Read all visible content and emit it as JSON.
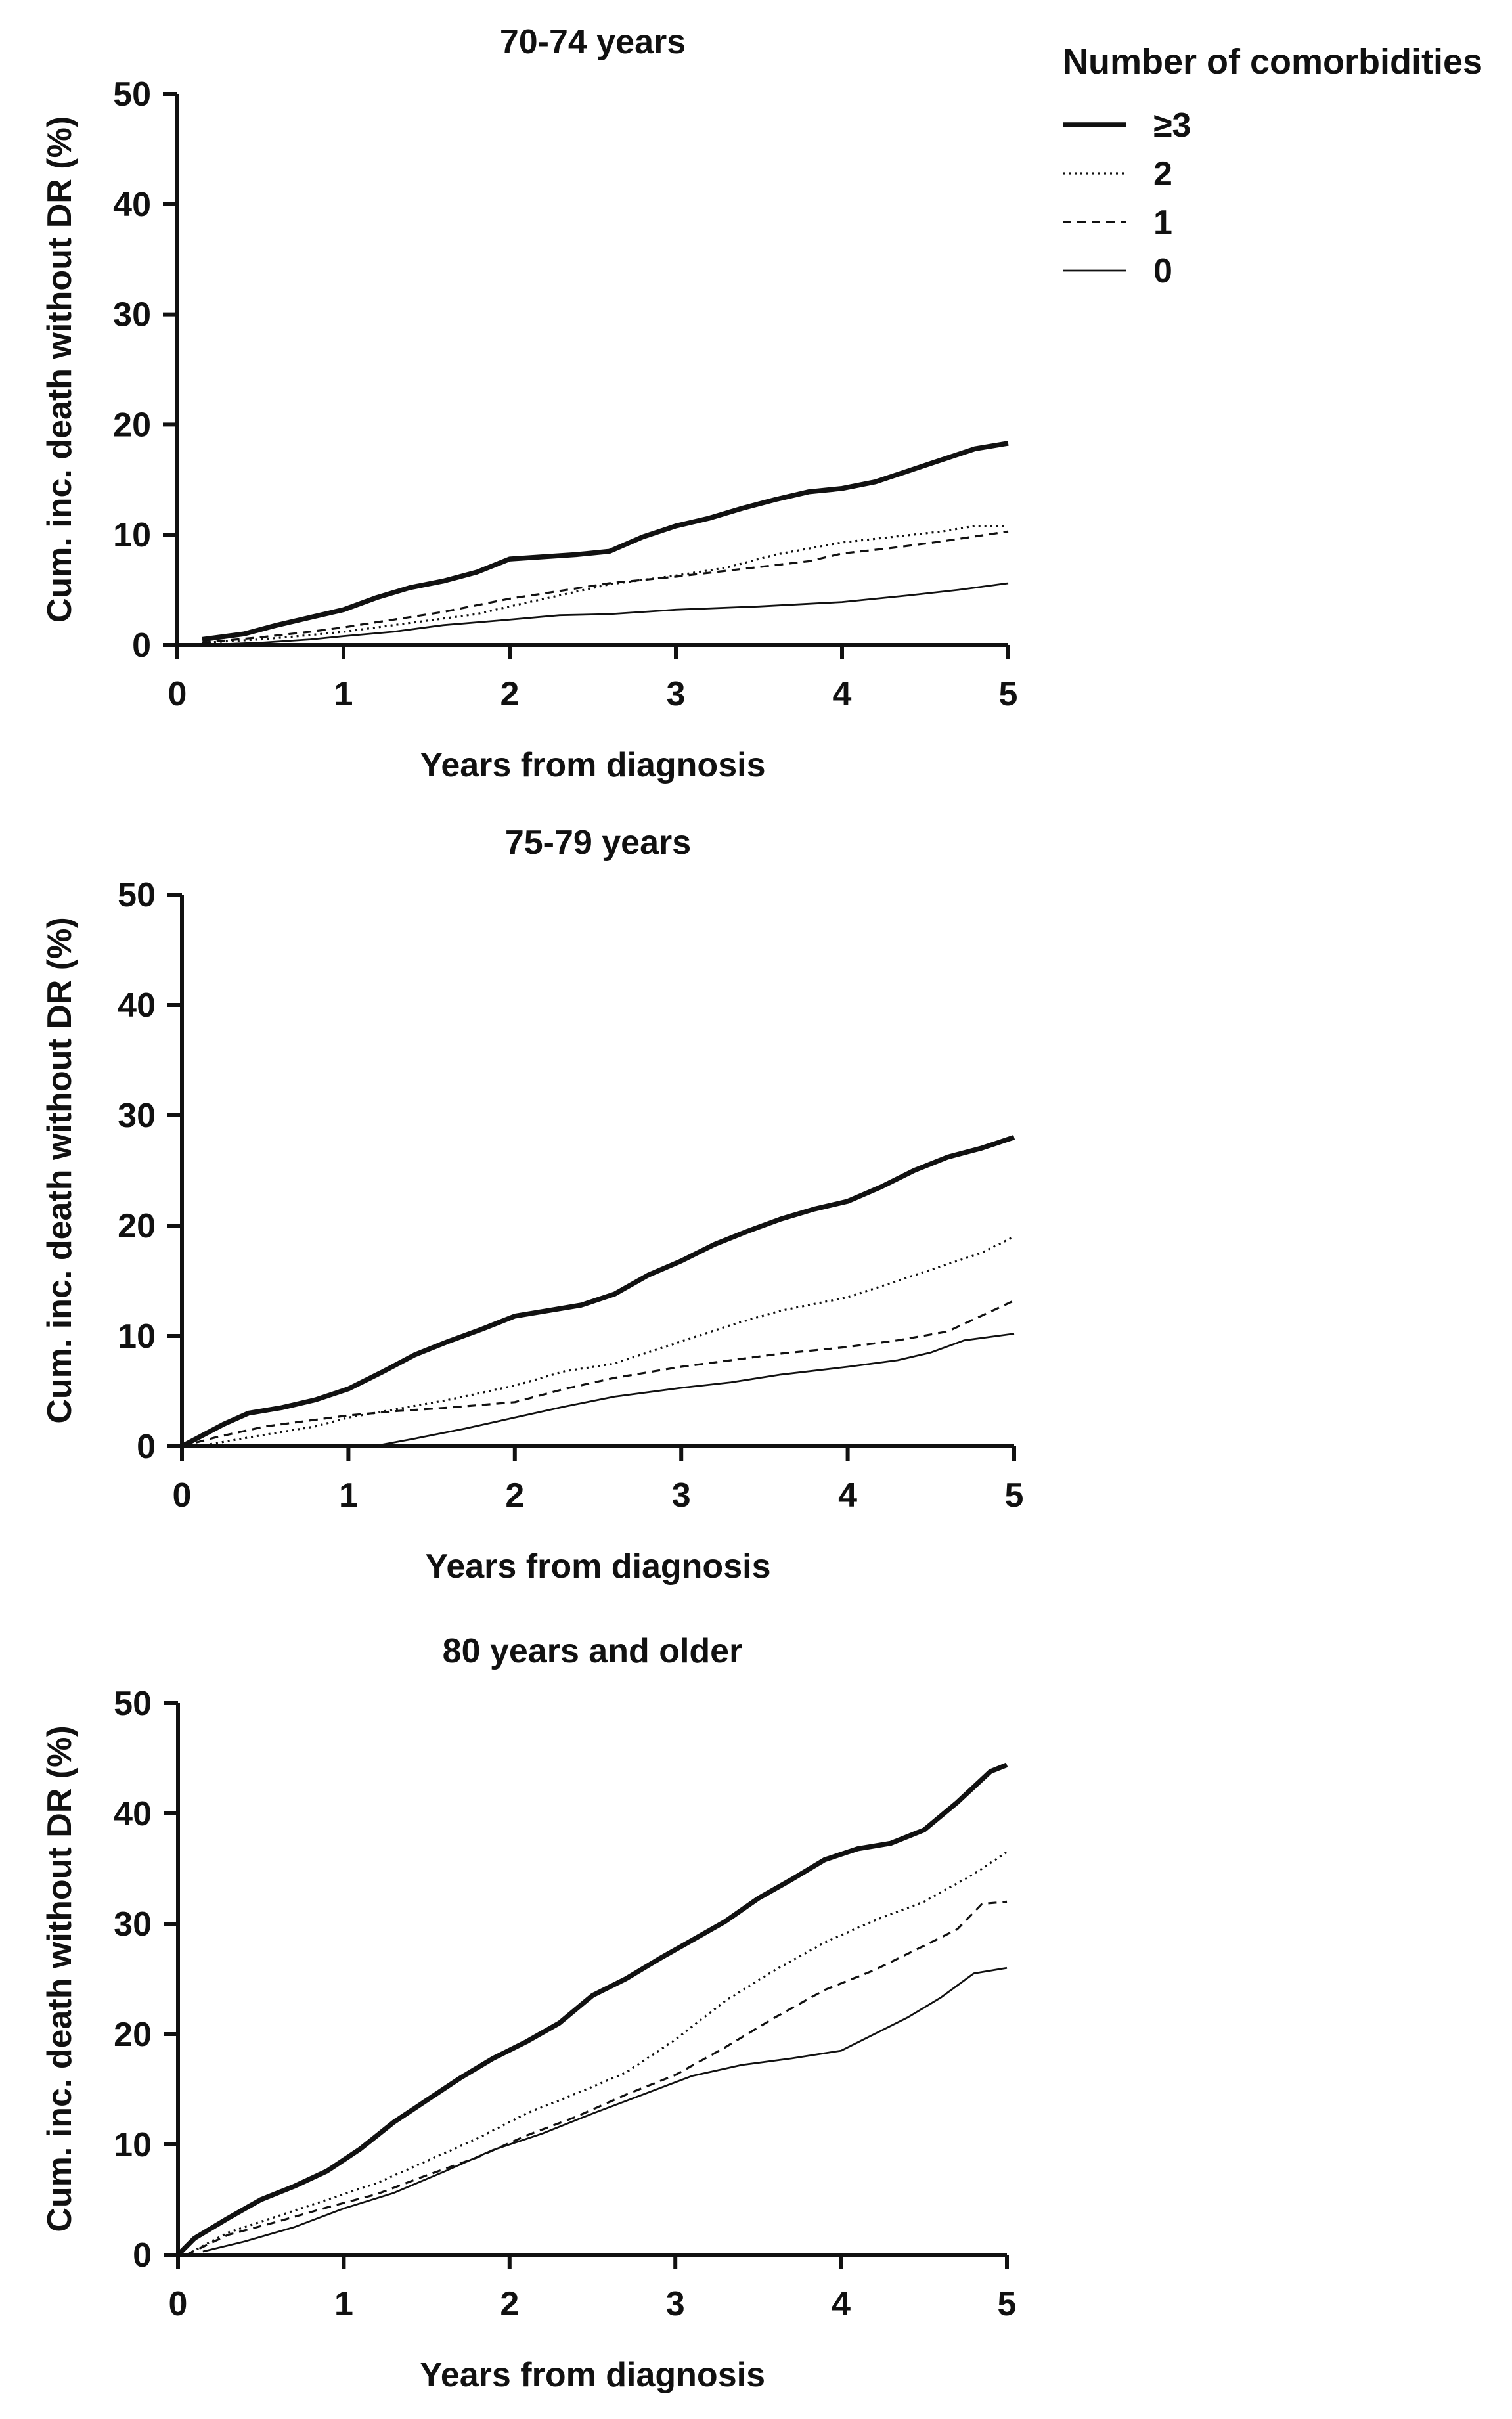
{
  "chart_data": [
    {
      "type": "line",
      "title": "70-74 years",
      "xlabel": "Years from diagnosis",
      "ylabel": "Cum. inc. death without DR (%)",
      "xlim": [
        0,
        5
      ],
      "ylim": [
        0,
        50
      ],
      "xticks": [
        "0",
        "1",
        "2",
        "3",
        "4",
        "5"
      ],
      "yticks": [
        "0",
        "10",
        "20",
        "30",
        "40",
        "50"
      ],
      "grid": false,
      "series": [
        {
          "name": "≥3",
          "style": "solid-thick",
          "x": [
            0.15,
            0.4,
            0.6,
            0.8,
            1.0,
            1.2,
            1.4,
            1.6,
            1.8,
            2.0,
            2.2,
            2.4,
            2.6,
            2.8,
            3.0,
            3.2,
            3.4,
            3.6,
            3.8,
            4.0,
            4.2,
            4.4,
            4.6,
            4.8,
            5.0
          ],
          "y": [
            0.5,
            1.0,
            1.8,
            2.5,
            3.2,
            4.3,
            5.2,
            5.8,
            6.6,
            7.8,
            8.0,
            8.2,
            8.5,
            9.8,
            10.8,
            11.5,
            12.4,
            13.2,
            13.9,
            14.2,
            14.8,
            15.8,
            16.8,
            17.8,
            18.3
          ]
        },
        {
          "name": "2",
          "style": "dotted",
          "x": [
            0.15,
            0.5,
            0.8,
            1.0,
            1.2,
            1.5,
            1.8,
            2.0,
            2.3,
            2.6,
            3.0,
            3.3,
            3.6,
            4.0,
            4.3,
            4.6,
            4.8,
            5.0
          ],
          "y": [
            0.2,
            0.5,
            0.9,
            1.2,
            1.6,
            2.2,
            2.8,
            3.5,
            4.5,
            5.5,
            6.3,
            7.0,
            8.2,
            9.3,
            9.8,
            10.3,
            10.8,
            10.8
          ]
        },
        {
          "name": "1",
          "style": "dashed",
          "x": [
            0.15,
            0.5,
            0.8,
            1.0,
            1.3,
            1.6,
            2.0,
            2.3,
            2.6,
            3.0,
            3.4,
            3.8,
            4.0,
            4.3,
            4.6,
            5.0
          ],
          "y": [
            0.2,
            0.7,
            1.2,
            1.6,
            2.3,
            3.0,
            4.2,
            4.9,
            5.6,
            6.2,
            6.9,
            7.6,
            8.3,
            8.8,
            9.4,
            10.3
          ]
        },
        {
          "name": "0",
          "style": "solid-thin",
          "x": [
            0.15,
            0.5,
            0.8,
            1.0,
            1.3,
            1.6,
            2.0,
            2.3,
            2.6,
            3.0,
            3.5,
            4.0,
            4.4,
            4.7,
            5.0
          ],
          "y": [
            0.0,
            0.2,
            0.5,
            0.8,
            1.2,
            1.8,
            2.3,
            2.7,
            2.8,
            3.2,
            3.5,
            3.9,
            4.5,
            5.0,
            5.6
          ]
        }
      ]
    },
    {
      "type": "line",
      "title": "75-79 years",
      "xlabel": "Years from diagnosis",
      "ylabel": "Cum. inc. death without DR (%)",
      "xlim": [
        0,
        5
      ],
      "ylim": [
        0,
        50
      ],
      "xticks": [
        "0",
        "1",
        "2",
        "3",
        "4",
        "5"
      ],
      "yticks": [
        "0",
        "10",
        "20",
        "30",
        "40",
        "50"
      ],
      "grid": false,
      "series": [
        {
          "name": "≥3",
          "style": "solid-thick",
          "x": [
            0.0,
            0.1,
            0.25,
            0.4,
            0.6,
            0.8,
            1.0,
            1.2,
            1.4,
            1.6,
            1.8,
            2.0,
            2.2,
            2.4,
            2.6,
            2.8,
            3.0,
            3.2,
            3.4,
            3.6,
            3.8,
            4.0,
            4.2,
            4.4,
            4.6,
            4.8,
            5.0
          ],
          "y": [
            0.0,
            0.8,
            2.0,
            3.0,
            3.5,
            4.2,
            5.2,
            6.7,
            8.3,
            9.5,
            10.6,
            11.8,
            12.3,
            12.8,
            13.8,
            15.5,
            16.8,
            18.3,
            19.5,
            20.6,
            21.5,
            22.2,
            23.5,
            25.0,
            26.2,
            27.0,
            28.0
          ]
        },
        {
          "name": "2",
          "style": "dotted",
          "x": [
            0.1,
            0.4,
            0.8,
            1.0,
            1.3,
            1.6,
            2.0,
            2.3,
            2.6,
            3.0,
            3.3,
            3.6,
            4.0,
            4.3,
            4.6,
            4.8,
            5.0
          ],
          "y": [
            0.0,
            0.8,
            1.8,
            2.6,
            3.4,
            4.2,
            5.5,
            6.8,
            7.5,
            9.5,
            11.0,
            12.3,
            13.5,
            15.0,
            16.5,
            17.5,
            19.0
          ]
        },
        {
          "name": "1",
          "style": "dashed",
          "x": [
            0.0,
            0.2,
            0.5,
            0.8,
            1.0,
            1.3,
            1.6,
            2.0,
            2.3,
            2.6,
            3.0,
            3.3,
            3.6,
            4.0,
            4.3,
            4.6,
            4.8,
            5.0
          ],
          "y": [
            0.0,
            0.8,
            1.8,
            2.4,
            2.8,
            3.2,
            3.5,
            4.0,
            5.2,
            6.2,
            7.2,
            7.8,
            8.4,
            9.0,
            9.6,
            10.4,
            11.8,
            13.2
          ]
        },
        {
          "name": "0",
          "style": "solid-thin",
          "x": [
            1.15,
            1.4,
            1.7,
            2.0,
            2.3,
            2.6,
            3.0,
            3.3,
            3.6,
            4.0,
            4.3,
            4.5,
            4.7,
            5.0
          ],
          "y": [
            0.0,
            0.7,
            1.6,
            2.6,
            3.6,
            4.5,
            5.3,
            5.8,
            6.5,
            7.2,
            7.8,
            8.5,
            9.6,
            10.2
          ]
        }
      ]
    },
    {
      "type": "line",
      "title": "80 years and older",
      "xlabel": "Years from diagnosis",
      "ylabel": "Cum. inc. death without DR (%)",
      "xlim": [
        0,
        5
      ],
      "ylim": [
        0,
        50
      ],
      "xticks": [
        "0",
        "1",
        "2",
        "3",
        "4",
        "5"
      ],
      "yticks": [
        "0",
        "10",
        "20",
        "30",
        "40",
        "50"
      ],
      "grid": false,
      "series": [
        {
          "name": "≥3",
          "style": "solid-thick",
          "x": [
            0.0,
            0.1,
            0.3,
            0.5,
            0.7,
            0.9,
            1.1,
            1.3,
            1.5,
            1.7,
            1.9,
            2.1,
            2.3,
            2.5,
            2.7,
            2.9,
            3.1,
            3.3,
            3.5,
            3.7,
            3.9,
            4.1,
            4.3,
            4.5,
            4.7,
            4.9,
            5.0
          ],
          "y": [
            0.0,
            1.5,
            3.3,
            5.0,
            6.2,
            7.6,
            9.6,
            12.0,
            14.0,
            16.0,
            17.8,
            19.3,
            21.0,
            23.5,
            25.0,
            26.8,
            28.5,
            30.2,
            32.3,
            34.0,
            35.8,
            36.8,
            37.3,
            38.5,
            41.0,
            43.8,
            44.4
          ]
        },
        {
          "name": "2",
          "style": "dotted",
          "x": [
            0.05,
            0.3,
            0.6,
            0.9,
            1.2,
            1.5,
            1.8,
            2.1,
            2.4,
            2.7,
            3.0,
            3.3,
            3.6,
            3.9,
            4.2,
            4.5,
            4.8,
            5.0
          ],
          "y": [
            0.0,
            2.0,
            3.5,
            5.0,
            6.5,
            8.5,
            10.5,
            12.8,
            14.6,
            16.5,
            19.5,
            23.0,
            25.8,
            28.3,
            30.3,
            32.0,
            34.5,
            36.5
          ]
        },
        {
          "name": "1",
          "style": "dashed",
          "x": [
            0.05,
            0.3,
            0.6,
            0.9,
            1.2,
            1.5,
            1.8,
            2.1,
            2.4,
            2.7,
            3.0,
            3.3,
            3.6,
            3.9,
            4.2,
            4.5,
            4.7,
            4.85,
            5.0
          ],
          "y": [
            0.0,
            1.8,
            3.0,
            4.3,
            5.5,
            7.2,
            8.8,
            10.8,
            12.5,
            14.5,
            16.3,
            18.8,
            21.5,
            24.0,
            25.8,
            28.0,
            29.5,
            31.8,
            32.0
          ]
        },
        {
          "name": "0",
          "style": "solid-thin",
          "x": [
            0.15,
            0.4,
            0.7,
            1.0,
            1.3,
            1.6,
            1.9,
            2.2,
            2.5,
            2.8,
            3.1,
            3.4,
            3.7,
            4.0,
            4.2,
            4.4,
            4.6,
            4.8,
            5.0
          ],
          "y": [
            0.3,
            1.2,
            2.5,
            4.2,
            5.6,
            7.5,
            9.5,
            11.0,
            12.8,
            14.5,
            16.2,
            17.2,
            17.8,
            18.5,
            20.0,
            21.5,
            23.3,
            25.5,
            26.0
          ]
        }
      ]
    }
  ],
  "legend": {
    "title": "Number of comorbidities",
    "placement": "top-right",
    "items": [
      {
        "label": "≥3",
        "style": "solid-thick"
      },
      {
        "label": "2",
        "style": "dotted"
      },
      {
        "label": "1",
        "style": "dashed"
      },
      {
        "label": "0",
        "style": "solid-thin"
      }
    ]
  }
}
